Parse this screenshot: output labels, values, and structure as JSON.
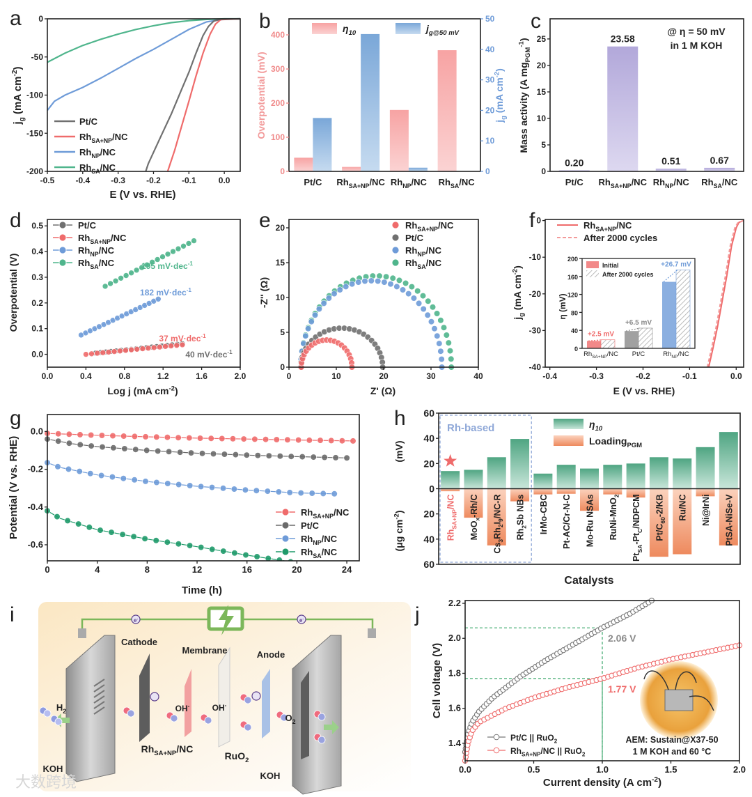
{
  "panel_letters": [
    "a",
    "b",
    "c",
    "d",
    "e",
    "f",
    "g",
    "h",
    "i",
    "j"
  ],
  "chart_data": [
    {
      "type": "line",
      "xlabel": "E (V vs. RHE)",
      "ylabel": "j_{g} (mA cm^{-2})",
      "xlim": [
        -0.5,
        0.045
      ],
      "ylim": [
        -200,
        0
      ],
      "xticks": [
        "-0.5",
        "-0.4",
        "-0.3",
        "-0.2",
        "-0.1",
        "0.0"
      ],
      "yticks": [
        "-200",
        "-150",
        "-100",
        "-50",
        "0"
      ],
      "legend": "bottom-left",
      "series": [
        {
          "name": "Pt/C",
          "color": "#707070",
          "points": [
            [
              -0.222,
              -200
            ],
            [
              -0.215,
              -190
            ],
            [
              -0.2,
              -175
            ],
            [
              -0.18,
              -155
            ],
            [
              -0.15,
              -125
            ],
            [
              -0.12,
              -92
            ],
            [
              -0.1,
              -70
            ],
            [
              -0.08,
              -45
            ],
            [
              -0.06,
              -22
            ],
            [
              -0.045,
              -10
            ],
            [
              -0.03,
              -3
            ],
            [
              -0.01,
              -0.5
            ],
            [
              0.045,
              0
            ]
          ]
        },
        {
          "name": "Rh_{SA+NP}/NC",
          "color": "#ef6b6b",
          "points": [
            [
              -0.16,
              -200
            ],
            [
              -0.14,
              -172
            ],
            [
              -0.12,
              -140
            ],
            [
              -0.1,
              -108
            ],
            [
              -0.08,
              -75
            ],
            [
              -0.06,
              -45
            ],
            [
              -0.04,
              -20
            ],
            [
              -0.025,
              -7
            ],
            [
              -0.01,
              -1
            ],
            [
              0.045,
              0
            ]
          ]
        },
        {
          "name": "Rh_{NP}/NC",
          "color": "#6e9bd8",
          "points": [
            [
              -0.5,
              -120
            ],
            [
              -0.48,
              -108
            ],
            [
              -0.45,
              -100
            ],
            [
              -0.4,
              -90
            ],
            [
              -0.35,
              -78
            ],
            [
              -0.3,
              -65
            ],
            [
              -0.25,
              -52
            ],
            [
              -0.2,
              -40
            ],
            [
              -0.15,
              -27
            ],
            [
              -0.1,
              -14
            ],
            [
              -0.05,
              -4
            ],
            [
              0,
              -0.5
            ],
            [
              0.045,
              0
            ]
          ]
        },
        {
          "name": "Rh_{SA}/NC",
          "color": "#4fb58c",
          "points": [
            [
              -0.5,
              -57
            ],
            [
              -0.45,
              -45
            ],
            [
              -0.4,
              -35
            ],
            [
              -0.35,
              -27
            ],
            [
              -0.3,
              -20
            ],
            [
              -0.25,
              -14
            ],
            [
              -0.2,
              -9
            ],
            [
              -0.15,
              -5
            ],
            [
              -0.1,
              -2.5
            ],
            [
              -0.05,
              -0.8
            ],
            [
              0,
              0
            ],
            [
              0.045,
              0
            ]
          ]
        }
      ]
    },
    {
      "type": "bar",
      "categories": [
        "Pt/C",
        "Rh_{SA+NP}/NC",
        "Rh_{NP}/NC",
        "Rh_{SA}/NC"
      ],
      "ylabel": "Overpotential (mV)",
      "y2label": "j_{g} (mA cm^{-2})",
      "ylim": [
        0,
        447
      ],
      "y2lim": [
        0,
        50
      ],
      "yticks": [
        "0",
        "100",
        "200",
        "300",
        "400"
      ],
      "y2ticks": [
        "0",
        "10",
        "20",
        "30",
        "40",
        "50"
      ],
      "legend": "top",
      "series": [
        {
          "name": "η_{10}",
          "axis": "left",
          "color": "#f6a9a9",
          "values": [
            40,
            13,
            180,
            355
          ]
        },
        {
          "name": "j_{g@50 mV}",
          "axis": "right",
          "color": "#8db4de",
          "values": [
            17.5,
            45,
            1.2,
            0.1
          ]
        }
      ]
    },
    {
      "type": "bar",
      "categories": [
        "Pt/C",
        "Rh_{SA+NP}/NC",
        "Rh_{NP}/NC",
        "Rh_{SA}/NC"
      ],
      "values": [
        0.2,
        23.58,
        0.51,
        0.67
      ],
      "value_labels": [
        "0.20",
        "23.58",
        "0.51",
        "0.67"
      ],
      "ylabel": "Mass activity (A mg_{PGM}^{-1})",
      "ylim": [
        0,
        28.8
      ],
      "yticks": [
        "0",
        "5",
        "10",
        "15",
        "20",
        "25"
      ],
      "annotations": [
        "@ η = 50 mV",
        "in 1 M KOH"
      ],
      "color": "#b9b0dd"
    },
    {
      "type": "scatter",
      "xlabel": "Log j (mA cm^{-2})",
      "ylabel": "Overpotential (V)",
      "xlim": [
        0,
        2.0
      ],
      "ylim": [
        -0.05,
        0.525
      ],
      "xticks": [
        "0.0",
        "0.4",
        "0.8",
        "1.2",
        "1.6",
        "2.0"
      ],
      "yticks": [
        "0.0",
        "0.1",
        "0.2",
        "0.3",
        "0.4",
        "0.5"
      ],
      "legend": "top-left",
      "series": [
        {
          "name": "Pt/C",
          "color": "#707070",
          "slope": "40 mV·dec^{-1}",
          "points": [
            [
              0.5,
              0.005
            ],
            [
              1.4,
              0.041
            ]
          ]
        },
        {
          "name": "Rh_{SA+NP}/NC",
          "color": "#ef6b6b",
          "slope": "37 mV·dec^{-1}",
          "points": [
            [
              0.4,
              0.0
            ],
            [
              1.4,
              0.037
            ]
          ]
        },
        {
          "name": "Rh_{NP}/NC",
          "color": "#6e9bd8",
          "slope": "182 mV·dec^{-1}",
          "points": [
            [
              0.35,
              0.075
            ],
            [
              1.15,
              0.215
            ]
          ]
        },
        {
          "name": "Rh_{SA}/NC",
          "color": "#4fb58c",
          "slope": "195 mV·dec^{-1}",
          "points": [
            [
              0.6,
              0.265
            ],
            [
              1.52,
              0.442
            ]
          ]
        }
      ]
    },
    {
      "type": "scatter",
      "xlabel": "Z' (Ω)",
      "ylabel": "-Z'' (Ω)",
      "xlim": [
        0,
        40
      ],
      "ylim": [
        0,
        21.2
      ],
      "xticks": [
        "0",
        "10",
        "20",
        "30",
        "40"
      ],
      "yticks": [
        "0",
        "5",
        "10",
        "15",
        "20"
      ],
      "legend": "top-right",
      "series": [
        {
          "name": "Rh_{SA+NP}/NC",
          "color": "#ef6b6b",
          "arc": {
            "start": 2.6,
            "end": 13.3,
            "peak": 3.9
          }
        },
        {
          "name": "Pt/C",
          "color": "#707070",
          "arc": {
            "start": 2.5,
            "end": 19.8,
            "peak": 5.6
          }
        },
        {
          "name": "Rh_{NP}/NC",
          "color": "#6e9bd8",
          "arc": {
            "start": 2.5,
            "end": 32.3,
            "peak": 12.4
          }
        },
        {
          "name": "Rh_{SA}/NC",
          "color": "#4fb58c",
          "arc": {
            "start": 2.5,
            "end": 34.3,
            "peak": 13.1
          }
        }
      ]
    },
    {
      "type": "line",
      "xlabel": "E (V vs. RHE)",
      "ylabel": "j_{g} (mA cm^{-2})",
      "xlim": [
        -0.41,
        0.016
      ],
      "ylim": [
        -40,
        0.3
      ],
      "xticks": [
        "-0.4",
        "-0.3",
        "-0.2",
        "-0.1",
        "0.0"
      ],
      "yticks": [
        "-40",
        "-30",
        "-20",
        "-10",
        "0"
      ],
      "legend": "top-left",
      "series": [
        {
          "name": "Rh_{SA+NP}/NC",
          "color": "#ef6b6b",
          "style": "solid",
          "points": [
            [
              -0.059,
              -40
            ],
            [
              -0.05,
              -35
            ],
            [
              -0.04,
              -29
            ],
            [
              -0.03,
              -22
            ],
            [
              -0.02,
              -15
            ],
            [
              -0.01,
              -7
            ],
            [
              0,
              -2
            ],
            [
              0.006,
              -0.5
            ],
            [
              0.016,
              0
            ]
          ]
        },
        {
          "name": "After 2000 cycles",
          "color": "#f39a9a",
          "style": "dashed",
          "points": [
            [
              -0.062,
              -40
            ],
            [
              -0.053,
              -35
            ],
            [
              -0.043,
              -29
            ],
            [
              -0.033,
              -22
            ],
            [
              -0.023,
              -15
            ],
            [
              -0.013,
              -7
            ],
            [
              -0.003,
              -2
            ],
            [
              0.004,
              -0.5
            ],
            [
              0.016,
              0
            ]
          ]
        }
      ],
      "inset": {
        "type": "bar",
        "categories": [
          "Rh_{SA+NP}/NC",
          "Pt/C",
          "Rh_{NP}/NC"
        ],
        "ylabel": "η (mV)",
        "ylim": [
          0,
          200
        ],
        "yticks": [
          "0",
          "40",
          "80",
          "120",
          "160",
          "200"
        ],
        "legend": [
          "Initial",
          "After 2000 cycles"
        ],
        "initial": [
          16.5,
          38.5,
          148
        ],
        "after": [
          19,
          45,
          174.7
        ],
        "deltas": [
          "+2.5 mV",
          "+6.5 mV",
          "+26.7 mV"
        ],
        "colors": [
          "#ef6b6b",
          "#8a8a8a",
          "#6e9bd8"
        ]
      }
    },
    {
      "type": "scatter",
      "xlabel": "Time (h)",
      "ylabel": "Potential (V vs. RHE)",
      "xlim": [
        0,
        25
      ],
      "ylim": [
        -0.685,
        0.09
      ],
      "xticks": [
        "0",
        "4",
        "8",
        "12",
        "16",
        "20",
        "24"
      ],
      "yticks": [
        "-0.6",
        "-0.4",
        "-0.2",
        "0.0"
      ],
      "legend": "bottom-right",
      "series": [
        {
          "name": "Rh_{SA+NP}/NC",
          "color": "#ef6b6b",
          "points": [
            [
              0,
              -0.01
            ],
            [
              4,
              -0.02
            ],
            [
              8,
              -0.028
            ],
            [
              12,
              -0.035
            ],
            [
              16,
              -0.04
            ],
            [
              20,
              -0.045
            ],
            [
              24.5,
              -0.05
            ]
          ]
        },
        {
          "name": "Pt/C",
          "color": "#6a6a6a",
          "points": [
            [
              0,
              -0.04
            ],
            [
              2,
              -0.065
            ],
            [
              4,
              -0.08
            ],
            [
              8,
              -0.1
            ],
            [
              12,
              -0.115
            ],
            [
              16,
              -0.125
            ],
            [
              20,
              -0.133
            ],
            [
              24,
              -0.14
            ]
          ]
        },
        {
          "name": "Rh_{NP}/NC",
          "color": "#6e9bd8",
          "points": [
            [
              0,
              -0.165
            ],
            [
              1,
              -0.19
            ],
            [
              4,
              -0.23
            ],
            [
              8,
              -0.265
            ],
            [
              12,
              -0.29
            ],
            [
              16,
              -0.31
            ],
            [
              20,
              -0.325
            ],
            [
              23,
              -0.33
            ]
          ]
        },
        {
          "name": "Rh_{SA}/NC",
          "color": "#1f9a6a",
          "points": [
            [
              0,
              -0.42
            ],
            [
              1,
              -0.46
            ],
            [
              4,
              -0.52
            ],
            [
              8,
              -0.57
            ],
            [
              12,
              -0.61
            ],
            [
              16,
              -0.655
            ],
            [
              19.5,
              -0.69
            ]
          ]
        }
      ]
    },
    {
      "type": "bar",
      "categories": [
        "Rh_{SA+NP}/NC",
        "MoO_{x}-Rh/C",
        "Cs_{3}Rh_{2}I_{9}/NC-R",
        "Rh_{2}Sb NBs",
        "IrMo-CBC",
        "Pt-AC/Cr-N-C",
        "Mo-Ru NSAs",
        "RuNi-MnO_{2}",
        "Pt_{SA}-Pt_{C}/NDPCM",
        "Pt/C_{60}-2/KB",
        "Ru/NC",
        "Ni@IrNi",
        "PtSA-NiSe-V"
      ],
      "xlabel": "Catalysts",
      "ylabel_top": "(mV)",
      "ylabel_bottom": "(μg cm^{-2})",
      "ylim": [
        -60,
        60
      ],
      "yticks": [
        "60",
        "40",
        "20",
        "0",
        "20",
        "40",
        "60"
      ],
      "legend": "top-right",
      "series": [
        {
          "name": "η_{10}",
          "color": "#5fb08f",
          "values": [
            14,
            15,
            25,
            39.5,
            12,
            19,
            16,
            19,
            20,
            25,
            24,
            33,
            45
          ]
        },
        {
          "name": "Loading_{PGM}",
          "color": "#f2956c",
          "values": [
            2,
            23,
            45,
            10,
            4.5,
            4,
            17.5,
            4.5,
            7,
            54,
            52,
            6,
            45
          ]
        }
      ],
      "group_label": "Rh-based",
      "highlight_color": "#ef6b6b"
    },
    {
      "type": "scatter",
      "xlabel": "Current density (A cm^{-2})",
      "ylabel": "Cell voltage (V)",
      "xlim": [
        0,
        2.0
      ],
      "ylim": [
        1.3,
        2.216
      ],
      "xticks": [
        "0.0",
        "0.5",
        "1.0",
        "1.5",
        "2.0"
      ],
      "yticks": [
        "1.4",
        "1.6",
        "1.8",
        "2.0",
        "2.2"
      ],
      "legend": "bottom-left",
      "series": [
        {
          "name": "Pt/C || RuO_{2}",
          "color": "#777777",
          "points": [
            [
              0,
              1.35
            ],
            [
              0.02,
              1.45
            ],
            [
              0.05,
              1.52
            ],
            [
              0.1,
              1.58
            ],
            [
              0.2,
              1.66
            ],
            [
              0.4,
              1.78
            ],
            [
              0.6,
              1.88
            ],
            [
              0.8,
              1.97
            ],
            [
              1.0,
              2.06
            ],
            [
              1.2,
              2.14
            ],
            [
              1.36,
              2.216
            ]
          ]
        },
        {
          "name": "Rh_{SA+NP}/NC || RuO_{2}",
          "color": "#ef6b6b",
          "points": [
            [
              0,
              1.3
            ],
            [
              0.02,
              1.4
            ],
            [
              0.05,
              1.47
            ],
            [
              0.1,
              1.52
            ],
            [
              0.3,
              1.6
            ],
            [
              0.5,
              1.66
            ],
            [
              0.75,
              1.72
            ],
            [
              1.0,
              1.77
            ],
            [
              1.25,
              1.83
            ],
            [
              1.5,
              1.88
            ],
            [
              1.75,
              1.92
            ],
            [
              2.0,
              1.96
            ]
          ]
        }
      ],
      "marker_x": 1.0,
      "annotations": [
        {
          "text": "2.06 V",
          "value": 2.06,
          "color": "#8a8a8a"
        },
        {
          "text": "1.77 V",
          "value": 1.77,
          "color": "#ef6b6b"
        }
      ],
      "notes": [
        "AEM: Sustain@X37-50",
        "1 M KOH and 60 °C"
      ]
    }
  ],
  "diagram_i": {
    "labels": {
      "cathode": "Cathode",
      "membrane": "Membrane",
      "anode": "Anode",
      "h2": "H_{2}",
      "o2": "O_{2}",
      "oh1": "OH^{-}",
      "oh2": "OH^{-}",
      "cathode_catalyst": "Rh_{SA+NP}/NC",
      "anode_catalyst": "RuO_{2}",
      "koh_left": "KOH",
      "koh_right": "KOH",
      "electron": "e^{-}"
    },
    "colors": {
      "wire": "#7cb75a",
      "cathode_catalyst": "#f2a0a0",
      "anode_catalyst": "#a9c1e6",
      "membrane": "#f1eee8"
    }
  },
  "watermark": "大数跨境"
}
